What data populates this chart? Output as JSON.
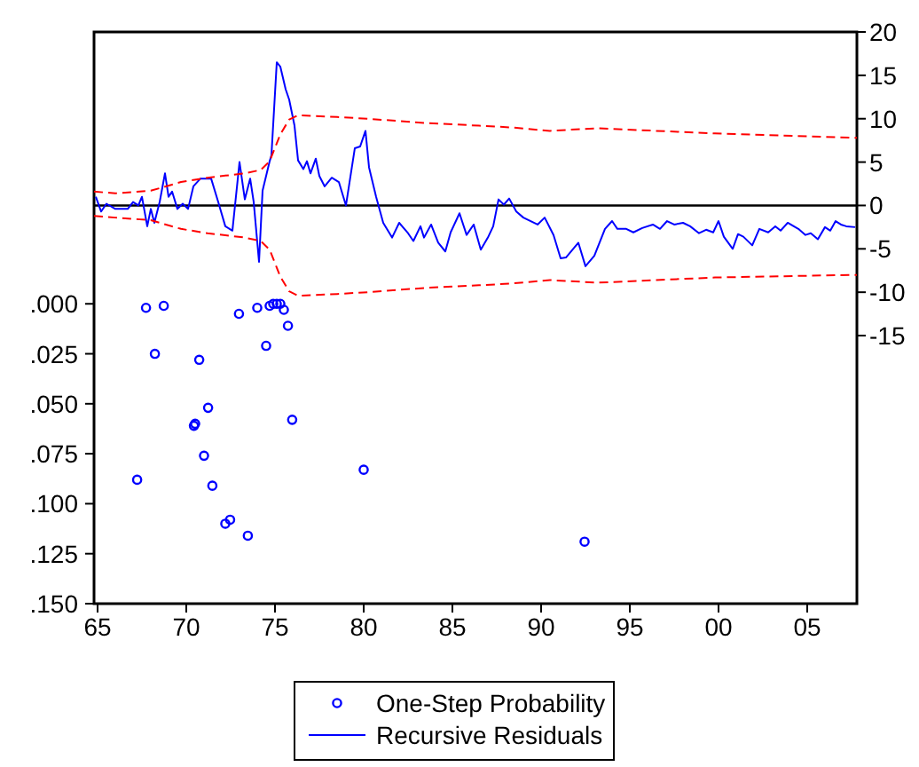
{
  "chart_data": {
    "type": "line",
    "xlim": [
      1964.8,
      2007.8
    ],
    "xticks": [
      {
        "value": 1965,
        "label": "65"
      },
      {
        "value": 1970,
        "label": "70"
      },
      {
        "value": 1975,
        "label": "75"
      },
      {
        "value": 1980,
        "label": "80"
      },
      {
        "value": 1985,
        "label": "85"
      },
      {
        "value": 1990,
        "label": "90"
      },
      {
        "value": 1995,
        "label": "95"
      },
      {
        "value": 2000,
        "label": "00"
      },
      {
        "value": 2005,
        "label": "05"
      }
    ],
    "ylim": [
      0.15,
      -0.136
    ],
    "yticks": [
      {
        "value": 0,
        "label": ".000"
      },
      {
        "value": 0.025,
        "label": ".025"
      },
      {
        "value": 0.05,
        "label": ".050"
      },
      {
        "value": 0.075,
        "label": ".075"
      },
      {
        "value": 0.1,
        "label": ".100"
      },
      {
        "value": 0.125,
        "label": ".125"
      },
      {
        "value": 0.15,
        "label": ".150"
      }
    ],
    "y2lim": [
      -45.9,
      20
    ],
    "y2ticks": [
      20,
      15,
      10,
      5,
      0,
      -5,
      -10,
      -15
    ],
    "legend": "bottom",
    "ref_lines": [
      {
        "axis": "y2",
        "value": 0,
        "color": "#000000"
      }
    ],
    "series": [
      {
        "name": "One-Step Probability",
        "type": "scatter",
        "marker": "circle",
        "color": "#0000ff",
        "x": [
          1967.23,
          1967.73,
          1968.23,
          1968.73,
          1970.43,
          1970.5,
          1970.73,
          1971.0,
          1971.23,
          1971.47,
          1972.2,
          1972.47,
          1972.97,
          1973.47,
          1974.0,
          1974.5,
          1974.7,
          1974.9,
          1975.1,
          1975.3,
          1975.5,
          1975.73,
          1975.97,
          1980.0,
          1992.45
        ],
        "values": [
          0.088,
          0.002,
          0.025,
          0.001,
          0.061,
          0.06,
          0.028,
          0.076,
          0.052,
          0.091,
          0.11,
          0.108,
          0.005,
          0.116,
          0.002,
          0.021,
          0.001,
          0,
          0,
          0,
          0.003,
          0.011,
          0.058,
          0.083,
          0.119
        ]
      },
      {
        "name": "Recursive Residuals",
        "axis": "y2",
        "color": "#0000ff",
        "x": [
          1964.9,
          1965.2,
          1965.5,
          1966,
          1966.7,
          1967,
          1967.3,
          1967.5,
          1967.8,
          1968,
          1968.2,
          1968.5,
          1968.8,
          1969,
          1969.2,
          1969.5,
          1969.8,
          1970.1,
          1970.4,
          1970.8,
          1971.4,
          1971.8,
          1972.2,
          1972.6,
          1973,
          1973.3,
          1973.6,
          1973.8,
          1974.1,
          1974.3,
          1974.7,
          1974.8,
          1975.1,
          1975.3,
          1975.6,
          1975.8,
          1976.1,
          1976.3,
          1976.6,
          1976.8,
          1977,
          1977.3,
          1977.5,
          1977.8,
          1978.2,
          1978.6,
          1979,
          1979.5,
          1979.8,
          1980.1,
          1980.3,
          1980.7,
          1981.1,
          1981.6,
          1982,
          1982.5,
          1982.8,
          1983.2,
          1983.4,
          1983.8,
          1984.2,
          1984.6,
          1984.9,
          1985.4,
          1985.8,
          1986.2,
          1986.6,
          1987,
          1987.3,
          1987.6,
          1987.9,
          1988.2,
          1988.6,
          1989,
          1989.8,
          1990.2,
          1990.7,
          1991.1,
          1991.4,
          1992.1,
          1992.5,
          1993,
          1993.6,
          1994,
          1994.3,
          1994.8,
          1995.2,
          1995.7,
          1996.3,
          1996.7,
          1997.1,
          1997.5,
          1998,
          1998.4,
          1998.9,
          1999.3,
          1999.7,
          2000,
          2000.3,
          2000.8,
          2001.1,
          2001.4,
          2001.9,
          2002.3,
          2002.8,
          2003.2,
          2003.5,
          2003.9,
          2004.5,
          2004.9,
          2005.2,
          2005.6,
          2006,
          2006.3,
          2006.6,
          2006.9,
          2007.2,
          2007.7
        ],
        "values": [
          1.0,
          -0.7,
          0.2,
          -0.4,
          -0.4,
          0.4,
          0,
          1.0,
          -2.4,
          -0.4,
          -2,
          0.4,
          3.7,
          1.0,
          1.6,
          -0.4,
          0.2,
          -0.4,
          2.2,
          3.1,
          3.1,
          0.4,
          -2.4,
          -2.9,
          5.0,
          0.7,
          3.1,
          0.4,
          -6.5,
          1.7,
          5.1,
          5.8,
          16.5,
          16.0,
          13.4,
          12.2,
          9.2,
          5.2,
          4.2,
          5.1,
          3.7,
          5.4,
          3.4,
          2.2,
          3.2,
          2.7,
          0,
          6.6,
          6.8,
          8.6,
          4.4,
          1.0,
          -2.0,
          -3.7,
          -2.0,
          -3.2,
          -4.1,
          -2.4,
          -3.7,
          -2.2,
          -4.3,
          -5.3,
          -3.1,
          -0.9,
          -3.4,
          -2.2,
          -5.1,
          -3.7,
          -2.4,
          0.7,
          0.1,
          0.8,
          -0.7,
          -1.4,
          -2.2,
          -1.4,
          -3.4,
          -6.1,
          -6.0,
          -4.3,
          -7.0,
          -5.8,
          -2.7,
          -1.8,
          -2.7,
          -2.7,
          -3.1,
          -2.6,
          -2.2,
          -2.7,
          -1.8,
          -2.2,
          -2.0,
          -2.4,
          -3.2,
          -2.8,
          -3.1,
          -1.8,
          -3.6,
          -5.0,
          -3.3,
          -3.6,
          -4.6,
          -2.7,
          -3.1,
          -2.4,
          -2.9,
          -2.0,
          -2.7,
          -3.4,
          -3.2,
          -3.9,
          -2.5,
          -2.9,
          -1.8,
          -2.2,
          -2.4,
          -2.5
        ]
      },
      {
        "axis": "y2",
        "color": "#ff0000",
        "line_style": "dashed",
        "x": [
          1964.8,
          1966,
          1968,
          1969.7,
          1971.2,
          1973.3,
          1974.2,
          1974.7,
          1975.3,
          1975.8,
          1976.3,
          1978.5,
          1980.2,
          1983.5,
          1986.5,
          1988.3,
          1990.5,
          1993.2,
          1999.8,
          2007.8
        ],
        "values": [
          1.6,
          1.4,
          1.7,
          2.7,
          3.2,
          3.7,
          4.1,
          5.1,
          8.2,
          9.9,
          10.4,
          10.2,
          10.0,
          9.5,
          9.2,
          9.0,
          8.6,
          8.9,
          8.3,
          7.8
        ]
      },
      {
        "axis": "y2",
        "color": "#ff0000",
        "line_style": "dashed",
        "x": [
          1964.8,
          1966,
          1968,
          1969.7,
          1971.2,
          1973.3,
          1974.2,
          1974.7,
          1975.3,
          1975.8,
          1976.3,
          1978.5,
          1980.2,
          1983.5,
          1986.5,
          1988.3,
          1990.5,
          1993.2,
          1999.8,
          2007.8
        ],
        "values": [
          -1.2,
          -1.4,
          -1.7,
          -2.7,
          -3.2,
          -3.7,
          -4.1,
          -5.1,
          -8.2,
          -9.9,
          -10.4,
          -10.2,
          -10.0,
          -9.5,
          -9.2,
          -9.0,
          -8.6,
          -8.9,
          -8.3,
          -8.0
        ]
      }
    ]
  }
}
